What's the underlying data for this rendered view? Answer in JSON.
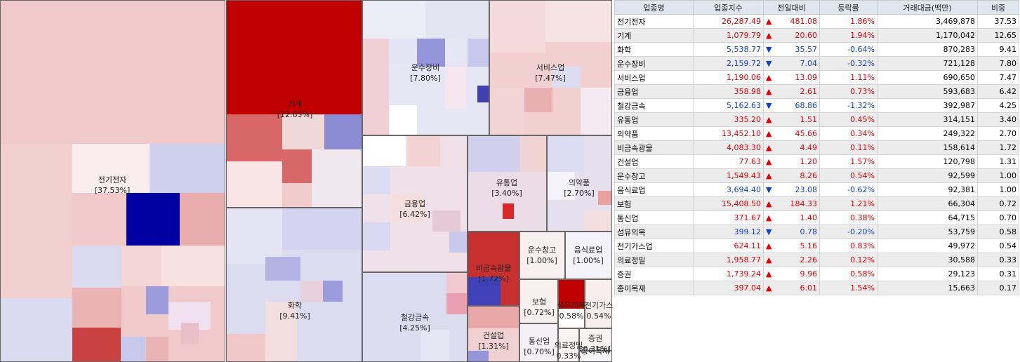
{
  "treemap": {
    "nodes": [
      {
        "name": "전기전자",
        "pct": "[37.53%]"
      },
      {
        "name": "기계",
        "pct": "[12.65%]"
      },
      {
        "name": "화학",
        "pct": "[9.41%]"
      },
      {
        "name": "운수장비",
        "pct": "[7.80%]"
      },
      {
        "name": "서비스업",
        "pct": "[7.47%]"
      },
      {
        "name": "금융업",
        "pct": "[6.42%]"
      },
      {
        "name": "유통업",
        "pct": "[3.40%]"
      },
      {
        "name": "의약품",
        "pct": "[2.70%]"
      },
      {
        "name": "철강금속",
        "pct": "[4.25%]"
      },
      {
        "name": "비금속광물",
        "pct": "[1.72%]"
      },
      {
        "name": "건설업",
        "pct": "[1.31%]"
      },
      {
        "name": "운수창고",
        "pct": "[1.00%]"
      },
      {
        "name": "음식료업",
        "pct": "[1.00%]"
      },
      {
        "name": "보험",
        "pct": "[0.72%]"
      },
      {
        "name": "섬유의복",
        "pct": "0.58%"
      },
      {
        "name": "전기가스",
        "pct": "0.54%"
      },
      {
        "name": "통신업",
        "pct": "[0.70%]"
      },
      {
        "name": "의료정밀",
        "pct": "0.33%"
      },
      {
        "name": "증권",
        "pct": "[0.31%]"
      },
      {
        "name": "종이목재",
        "pct": ""
      }
    ]
  },
  "table": {
    "headers": [
      "업종명",
      "업종지수",
      "전일대비",
      "등락률",
      "거래대금(백만)",
      "비중"
    ],
    "rows": [
      {
        "cells": [
          "전기전자",
          "26,287.49",
          "▲",
          "481.08",
          "1.86%",
          "3,469,878",
          "37.53"
        ],
        "color": "#e00000"
      },
      {
        "cells": [
          "기계",
          "1,079.79",
          "▲",
          "20.60",
          "1.94%",
          "1,170,042",
          "12.65"
        ],
        "color": "#e00000"
      },
      {
        "cells": [
          "화학",
          "5,538.77",
          "▼",
          "35.57",
          "-0.64%",
          "870,283",
          "9.41"
        ],
        "color": "#1040c0"
      },
      {
        "cells": [
          "운수장비",
          "2,159.72",
          "▼",
          "7.04",
          "-0.32%",
          "721,128",
          "7.80"
        ],
        "color": "#1040c0"
      },
      {
        "cells": [
          "서비스업",
          "1,190.06",
          "▲",
          "13.09",
          "1.11%",
          "690,650",
          "7.47"
        ],
        "color": "#e00000"
      },
      {
        "cells": [
          "금융업",
          "358.98",
          "▲",
          "2.61",
          "0.73%",
          "593,683",
          "6.42"
        ],
        "color": "#e00000"
      },
      {
        "cells": [
          "철강금속",
          "5,162.63",
          "▼",
          "68.86",
          "-1.32%",
          "392,987",
          "4.25"
        ],
        "color": "#1040c0"
      },
      {
        "cells": [
          "유통업",
          "335.20",
          "▲",
          "1.51",
          "0.45%",
          "314,151",
          "3.40"
        ],
        "color": "#e00000"
      },
      {
        "cells": [
          "의약품",
          "13,452.10",
          "▲",
          "45.66",
          "0.34%",
          "249,322",
          "2.70"
        ],
        "color": "#e00000"
      },
      {
        "cells": [
          "비금속광물",
          "4,083.30",
          "▲",
          "4.49",
          "0.11%",
          "158,614",
          "1.72"
        ],
        "color": "#e00000"
      },
      {
        "cells": [
          "건설업",
          "77.63",
          "▲",
          "1.20",
          "1.57%",
          "120,798",
          "1.31"
        ],
        "color": "#e00000"
      },
      {
        "cells": [
          "운수창고",
          "1,549.43",
          "▲",
          "8.26",
          "0.54%",
          "92,599",
          "1.00"
        ],
        "color": "#e00000"
      },
      {
        "cells": [
          "음식료업",
          "3,694.40",
          "▼",
          "23.08",
          "-0.62%",
          "92,381",
          "1.00"
        ],
        "color": "#1040c0"
      },
      {
        "cells": [
          "보험",
          "15,408.50",
          "▲",
          "184.33",
          "1.21%",
          "66,304",
          "0.72"
        ],
        "color": "#e00000"
      },
      {
        "cells": [
          "통신업",
          "371.67",
          "▲",
          "1.40",
          "0.38%",
          "64,715",
          "0.70"
        ],
        "color": "#e00000"
      },
      {
        "cells": [
          "섬유의복",
          "399.12",
          "▼",
          "0.78",
          "-0.20%",
          "53,759",
          "0.58"
        ],
        "color": "#1040c0"
      },
      {
        "cells": [
          "전기가스업",
          "624.11",
          "▲",
          "5.16",
          "0.83%",
          "49,972",
          "0.54"
        ],
        "color": "#e00000"
      },
      {
        "cells": [
          "의료정밀",
          "1,958.77",
          "▲",
          "2.26",
          "0.12%",
          "30,588",
          "0.33"
        ],
        "color": "#e00000"
      },
      {
        "cells": [
          "증권",
          "1,739.24",
          "▲",
          "9.96",
          "0.58%",
          "29,123",
          "0.31"
        ],
        "color": "#e00000"
      },
      {
        "cells": [
          "종이목재",
          "397.04",
          "▲",
          "6.01",
          "1.54%",
          "15,663",
          "0.17"
        ],
        "color": "#e00000"
      }
    ]
  }
}
